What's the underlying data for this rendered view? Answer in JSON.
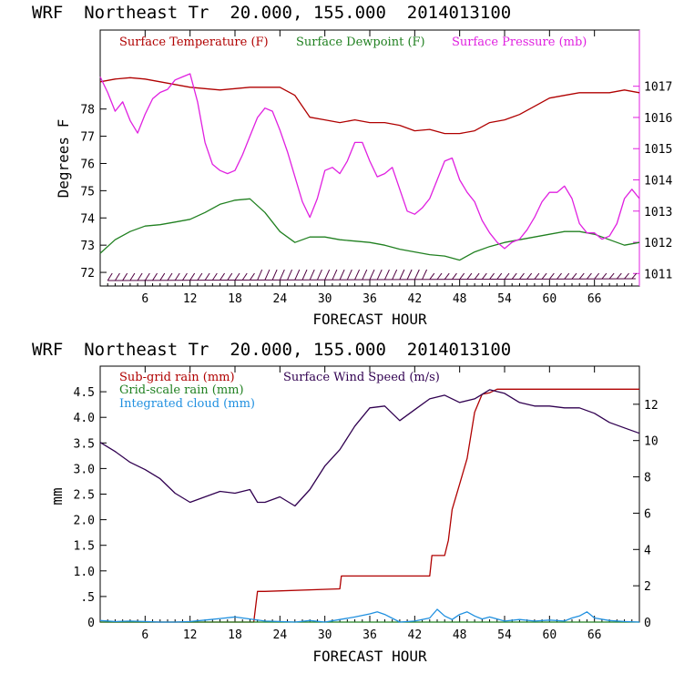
{
  "colors": {
    "temp": "#b00000",
    "dewpoint": "#208020",
    "pressure": "#e020e0",
    "subgrid": "#b00000",
    "gridscale": "#208020",
    "cloud": "#2090e0",
    "wind": "#300050",
    "barb": "#500040"
  },
  "chart_data": [
    {
      "type": "line",
      "title": "WRF  Northeast Tr  20.000, 155.000  2014013100",
      "xlabel": "FORECAST HOUR",
      "ylabel": "Degrees F",
      "xlim": [
        0,
        72
      ],
      "ylim": [
        71.5,
        80.9
      ],
      "y2lim": [
        1010.6,
        1018.8
      ],
      "xticks": [
        "6",
        "12",
        "18",
        "24",
        "30",
        "36",
        "42",
        "48",
        "54",
        "60",
        "66"
      ],
      "yticks": [
        "72",
        "73",
        "74",
        "75",
        "76",
        "77",
        "78"
      ],
      "y2ticks": [
        "1011",
        "1012",
        "1013",
        "1014",
        "1015",
        "1016",
        "1017"
      ],
      "legend": [
        "Surface Temperature (F)",
        "Surface Dewpoint (F)",
        "Surface Pressure (mb)"
      ],
      "series": [
        {
          "name": "Surface Temperature (F)",
          "axis": "left",
          "x": [
            0,
            2,
            4,
            6,
            8,
            10,
            12,
            14,
            16,
            18,
            20,
            22,
            24,
            26,
            28,
            30,
            32,
            34,
            36,
            38,
            40,
            42,
            44,
            46,
            48,
            50,
            52,
            54,
            56,
            58,
            60,
            62,
            64,
            66,
            68,
            70,
            72
          ],
          "y": [
            79.0,
            79.1,
            79.15,
            79.1,
            79.0,
            78.9,
            78.8,
            78.75,
            78.7,
            78.75,
            78.8,
            78.8,
            78.8,
            78.5,
            77.7,
            77.6,
            77.5,
            77.6,
            77.5,
            77.5,
            77.4,
            77.2,
            77.25,
            77.1,
            77.1,
            77.2,
            77.5,
            77.6,
            77.8,
            78.1,
            78.4,
            78.5,
            78.6,
            78.6,
            78.6,
            78.7,
            78.6
          ]
        },
        {
          "name": "Surface Dewpoint (F)",
          "axis": "left",
          "x": [
            0,
            2,
            4,
            6,
            8,
            10,
            12,
            14,
            16,
            18,
            20,
            22,
            24,
            26,
            28,
            30,
            32,
            34,
            36,
            38,
            40,
            42,
            44,
            46,
            48,
            50,
            52,
            54,
            56,
            58,
            60,
            62,
            64,
            66,
            68,
            70,
            72
          ],
          "y": [
            72.7,
            73.2,
            73.5,
            73.7,
            73.75,
            73.85,
            73.95,
            74.2,
            74.5,
            74.65,
            74.7,
            74.2,
            73.5,
            73.1,
            73.3,
            73.3,
            73.2,
            73.15,
            73.1,
            73.0,
            72.85,
            72.75,
            72.65,
            72.6,
            72.45,
            72.75,
            72.95,
            73.1,
            73.2,
            73.3,
            73.4,
            73.5,
            73.5,
            73.4,
            73.2,
            73.0,
            73.1
          ]
        },
        {
          "name": "Surface Pressure (mb)",
          "axis": "right",
          "x": [
            0,
            1,
            2,
            3,
            4,
            5,
            6,
            7,
            8,
            9,
            10,
            11,
            12,
            13,
            14,
            15,
            16,
            17,
            18,
            19,
            20,
            21,
            22,
            23,
            24,
            25,
            26,
            27,
            28,
            29,
            30,
            31,
            32,
            33,
            34,
            35,
            36,
            37,
            38,
            39,
            40,
            41,
            42,
            43,
            44,
            45,
            46,
            47,
            48,
            49,
            50,
            51,
            52,
            53,
            54,
            55,
            56,
            57,
            58,
            59,
            60,
            61,
            62,
            63,
            64,
            65,
            66,
            67,
            68,
            69,
            70,
            71,
            72
          ],
          "y": [
            1017.3,
            1016.8,
            1016.2,
            1016.5,
            1015.9,
            1015.5,
            1016.1,
            1016.6,
            1016.8,
            1016.9,
            1017.2,
            1017.3,
            1017.4,
            1016.5,
            1015.2,
            1014.5,
            1014.3,
            1014.2,
            1014.3,
            1014.8,
            1015.4,
            1016.0,
            1016.3,
            1016.2,
            1015.6,
            1014.9,
            1014.1,
            1013.3,
            1012.8,
            1013.4,
            1014.3,
            1014.4,
            1014.2,
            1014.6,
            1015.2,
            1015.2,
            1014.6,
            1014.1,
            1014.2,
            1014.4,
            1013.7,
            1013.0,
            1012.9,
            1013.1,
            1013.4,
            1014.0,
            1014.6,
            1014.7,
            1014.0,
            1013.6,
            1013.3,
            1012.7,
            1012.3,
            1012.0,
            1011.8,
            1012.0,
            1012.1,
            1012.4,
            1012.8,
            1013.3,
            1013.6,
            1013.6,
            1013.8,
            1013.4,
            1012.6,
            1012.3,
            1012.3,
            1012.1,
            1012.2,
            1012.6,
            1013.4,
            1013.7,
            1013.4
          ]
        }
      ],
      "wind_barbs_row_y": 71.7
    },
    {
      "type": "line",
      "title": "WRF  Northeast Tr  20.000, 155.000  2014013100",
      "xlabel": "FORECAST HOUR",
      "ylabel": "mm",
      "xlim": [
        0,
        72
      ],
      "ylim": [
        0,
        5.0
      ],
      "y2lim": [
        0,
        14.1
      ],
      "xticks": [
        "6",
        "12",
        "18",
        "24",
        "30",
        "36",
        "42",
        "48",
        "54",
        "60",
        "66"
      ],
      "yticks": [
        "0",
        ".5",
        "1.0",
        "1.5",
        "2.0",
        "2.5",
        "3.0",
        "3.5",
        "4.0",
        "4.5"
      ],
      "y2ticks": [
        "0",
        "2",
        "4",
        "6",
        "8",
        "10",
        "12"
      ],
      "legend": [
        "Sub-grid rain (mm)",
        "Grid-scale rain (mm)",
        "Integrated cloud (mm)",
        "Surface Wind Speed (m/s)"
      ],
      "series": [
        {
          "name": "Sub-grid rain (mm)",
          "axis": "left",
          "x": [
            0,
            20.5,
            21,
            22,
            32,
            32.2,
            33,
            44,
            44.3,
            46,
            46.5,
            47,
            48,
            49,
            50,
            51,
            52,
            53,
            72
          ],
          "y": [
            0,
            0,
            0.6,
            0.6,
            0.65,
            0.9,
            0.9,
            0.9,
            1.3,
            1.3,
            1.6,
            2.2,
            2.7,
            3.2,
            4.1,
            4.45,
            4.48,
            4.55,
            4.55
          ]
        },
        {
          "name": "Grid-scale rain (mm)",
          "axis": "left",
          "x": [
            0,
            72
          ],
          "y": [
            0,
            0
          ]
        },
        {
          "name": "Integrated cloud (mm)",
          "axis": "left",
          "x": [
            0,
            2,
            4,
            6,
            8,
            10,
            12,
            14,
            16,
            18,
            20,
            22,
            24,
            26,
            28,
            30,
            32,
            34,
            36,
            37,
            38,
            40,
            42,
            44,
            45,
            46,
            47,
            48,
            49,
            50,
            51,
            52,
            54,
            56,
            58,
            60,
            62,
            63,
            64,
            65,
            66,
            68,
            70,
            72
          ],
          "y": [
            0.03,
            0.01,
            0.02,
            0.01,
            0.0,
            0.0,
            0.01,
            0.04,
            0.07,
            0.1,
            0.06,
            0.02,
            0.01,
            0.0,
            0.03,
            0.0,
            0.05,
            0.1,
            0.16,
            0.2,
            0.15,
            0.0,
            0.02,
            0.08,
            0.25,
            0.12,
            0.05,
            0.15,
            0.2,
            0.12,
            0.06,
            0.1,
            0.02,
            0.05,
            0.02,
            0.04,
            0.02,
            0.08,
            0.12,
            0.2,
            0.08,
            0.03,
            0.01,
            0.0
          ]
        },
        {
          "name": "Surface Wind Speed (m/s)",
          "axis": "right",
          "x": [
            0,
            2,
            4,
            6,
            8,
            10,
            12,
            14,
            16,
            18,
            20,
            21,
            22,
            24,
            26,
            28,
            30,
            32,
            34,
            36,
            38,
            40,
            42,
            44,
            46,
            48,
            50,
            52,
            54,
            56,
            58,
            60,
            62,
            64,
            66,
            68,
            70,
            72
          ],
          "y": [
            9.9,
            9.4,
            8.8,
            8.4,
            7.9,
            7.1,
            6.6,
            6.9,
            7.2,
            7.1,
            7.3,
            6.6,
            6.6,
            6.9,
            6.4,
            7.3,
            8.6,
            9.5,
            10.8,
            11.8,
            11.9,
            11.1,
            11.7,
            12.3,
            12.5,
            12.1,
            12.3,
            12.8,
            12.6,
            12.1,
            11.9,
            11.9,
            11.8,
            11.8,
            11.5,
            11.0,
            10.7,
            10.4
          ]
        }
      ]
    }
  ]
}
